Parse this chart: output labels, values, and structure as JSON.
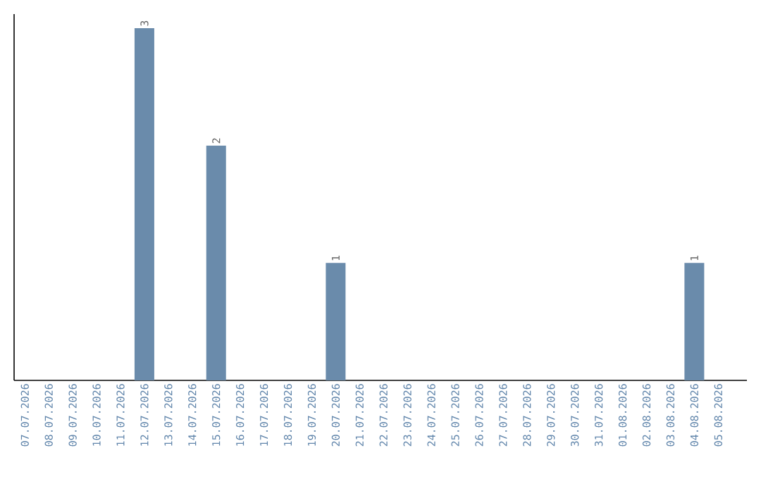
{
  "chart_data": {
    "type": "bar",
    "categories": [
      "07.07.2026",
      "08.07.2026",
      "09.07.2026",
      "10.07.2026",
      "11.07.2026",
      "12.07.2026",
      "13.07.2026",
      "14.07.2026",
      "15.07.2026",
      "16.07.2026",
      "17.07.2026",
      "18.07.2026",
      "19.07.2026",
      "20.07.2026",
      "21.07.2026",
      "22.07.2026",
      "23.07.2026",
      "24.07.2026",
      "25.07.2026",
      "26.07.2026",
      "27.07.2026",
      "28.07.2026",
      "29.07.2026",
      "30.07.2026",
      "31.07.2026",
      "01.08.2026",
      "02.08.2026",
      "03.08.2026",
      "04.08.2026",
      "05.08.2026"
    ],
    "values": [
      0,
      0,
      0,
      0,
      0,
      3,
      0,
      0,
      2,
      0,
      0,
      0,
      0,
      1,
      0,
      0,
      0,
      0,
      0,
      0,
      0,
      0,
      0,
      0,
      0,
      0,
      0,
      0,
      1,
      0
    ],
    "value_labels": [
      null,
      null,
      null,
      null,
      null,
      "3",
      null,
      null,
      "2",
      null,
      null,
      null,
      null,
      "1",
      null,
      null,
      null,
      null,
      null,
      null,
      null,
      null,
      null,
      null,
      null,
      null,
      null,
      null,
      "1",
      null
    ],
    "color": "#6a8bab",
    "tick_labels": "x"
  }
}
